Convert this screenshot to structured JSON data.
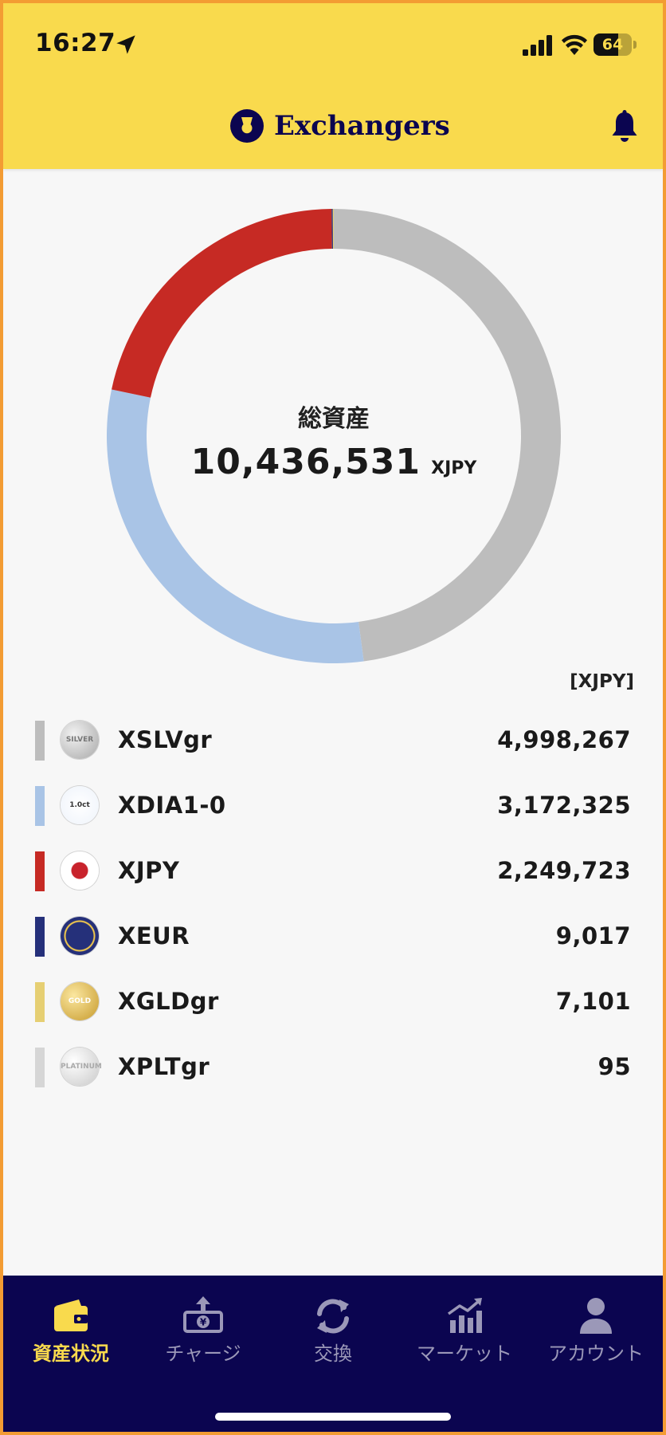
{
  "status_bar": {
    "time": "16:27",
    "battery": "64",
    "battery_level": 0.64
  },
  "header": {
    "app_name": "Exchangers"
  },
  "summary": {
    "total_label": "総資産",
    "total_value": "10,436,531",
    "unit": "XJPY",
    "unit_label": "[XJPY]"
  },
  "colors": {
    "header_yellow": "#f9da4d",
    "nav_navy": "#0b0550",
    "active_nav": "#f9da4d"
  },
  "chart_data": {
    "type": "pie",
    "donut": true,
    "unit": "XJPY",
    "slices": [
      {
        "name": "XSLVgr",
        "value": 4998267,
        "color": "#bdbdbd"
      },
      {
        "name": "XDIA1-0",
        "value": 3172325,
        "color": "#a9c4e6"
      },
      {
        "name": "XJPY",
        "value": 2249723,
        "color": "#c62a24"
      },
      {
        "name": "XEUR",
        "value": 9017,
        "color": "#25307a"
      },
      {
        "name": "XGLDgr",
        "value": 7101,
        "color": "#e6cf73"
      },
      {
        "name": "XPLTgr",
        "value": 95,
        "color": "#d6d6d6"
      }
    ]
  },
  "holdings": [
    {
      "name": "XSLVgr",
      "value": "4,998,267",
      "color": "#bdbdbd",
      "coin_icon": "silver-coin-icon",
      "coin_text": "SILVER"
    },
    {
      "name": "XDIA1-0",
      "value": "3,172,325",
      "color": "#a9c4e6",
      "coin_icon": "diamond-coin-icon",
      "coin_text": "1.0ct"
    },
    {
      "name": "XJPY",
      "value": "2,249,723",
      "color": "#c62a24",
      "coin_icon": "japan-flag-icon",
      "coin_text": ""
    },
    {
      "name": "XEUR",
      "value": "9,017",
      "color": "#25307a",
      "coin_icon": "eu-flag-icon",
      "coin_text": ""
    },
    {
      "name": "XGLDgr",
      "value": "7,101",
      "color": "#e6cf73",
      "coin_icon": "gold-coin-icon",
      "coin_text": "GOLD"
    },
    {
      "name": "XPLTgr",
      "value": "95",
      "color": "#d6d6d6",
      "coin_icon": "platinum-coin-icon",
      "coin_text": "PLATINUM"
    }
  ],
  "nav": {
    "items": [
      {
        "label": "資産状況",
        "icon": "wallet-icon",
        "active": true
      },
      {
        "label": "チャージ",
        "icon": "charge-icon",
        "active": false
      },
      {
        "label": "交換",
        "icon": "exchange-icon",
        "active": false
      },
      {
        "label": "マーケット",
        "icon": "market-chart-icon",
        "active": false
      },
      {
        "label": "アカウント",
        "icon": "account-icon",
        "active": false
      }
    ]
  }
}
